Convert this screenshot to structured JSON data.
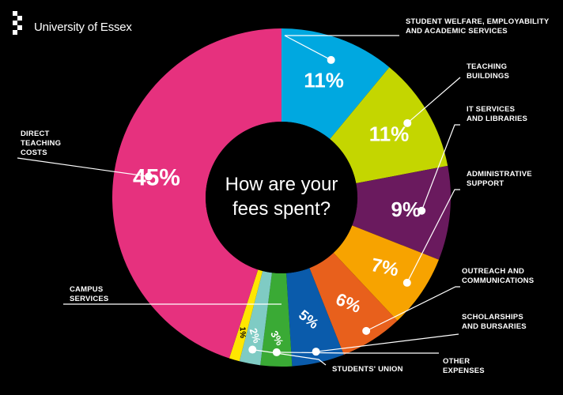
{
  "brand": {
    "name": "University of Essex",
    "logo": "university-of-essex-logo"
  },
  "center_text": {
    "line1": "How are your",
    "line2": "fees spent?"
  },
  "chart_data": {
    "type": "pie",
    "title": "How are your fees spent?",
    "series": [
      {
        "label": "STUDENT WELFARE, EMPLOYABILITY AND ACADEMIC SERVICES",
        "value": 11,
        "display": "11%",
        "color": "#00a8e0",
        "text_color": "#ffffff"
      },
      {
        "label": "TEACHING BUILDINGS",
        "value": 11,
        "display": "11%",
        "color": "#c4d600",
        "text_color": "#ffffff"
      },
      {
        "label": "IT SERVICES AND LIBRARIES",
        "value": 9,
        "display": "9%",
        "color": "#6a1a5e",
        "text_color": "#ffffff"
      },
      {
        "label": "ADMINISTRATIVE SUPPORT",
        "value": 7,
        "display": "7%",
        "color": "#f7a300",
        "text_color": "#ffffff"
      },
      {
        "label": "OUTREACH AND COMMUNICATIONS",
        "value": 6,
        "display": "6%",
        "color": "#e8601c",
        "text_color": "#ffffff"
      },
      {
        "label": "SCHOLARSHIPS AND BURSARIES",
        "value": 5,
        "display": "5%",
        "color": "#0a5bab",
        "text_color": "#ffffff"
      },
      {
        "label": "OTHER EXPENSES",
        "value": 3,
        "display": "3%",
        "color": "#3aaa35",
        "text_color": "#ffffff"
      },
      {
        "label": "STUDENTS' UNION",
        "value": 2,
        "display": "2%",
        "color": "#7fcbc4",
        "text_color": "#ffffff"
      },
      {
        "label": "CAMPUS SERVICES",
        "value": 1,
        "display": "1%",
        "color": "#ffe600",
        "text_color": "#000000"
      },
      {
        "label": "DIRECT TEACHING COSTS",
        "value": 45,
        "display": "45%",
        "color": "#e6317e",
        "text_color": "#ffffff"
      }
    ],
    "legend": "none"
  },
  "labels": {
    "student_welfare": "STUDENT WELFARE, EMPLOYABILITY\nAND ACADEMIC SERVICES",
    "teaching_buildings": "TEACHING\nBUILDINGS",
    "it_services": "IT SERVICES\nAND LIBRARIES",
    "administrative": "ADMINISTRATIVE\nSUPPORT",
    "outreach": "OUTREACH AND\nCOMMUNICATIONS",
    "scholarships": "SCHOLARSHIPS\nAND BURSARIES",
    "other_expenses": "OTHER\nEXPENSES",
    "students_union": "STUDENTS' UNION",
    "campus_services": "CAMPUS\nSERVICES",
    "direct_teaching": "DIRECT\nTEACHING\nCOSTS"
  }
}
